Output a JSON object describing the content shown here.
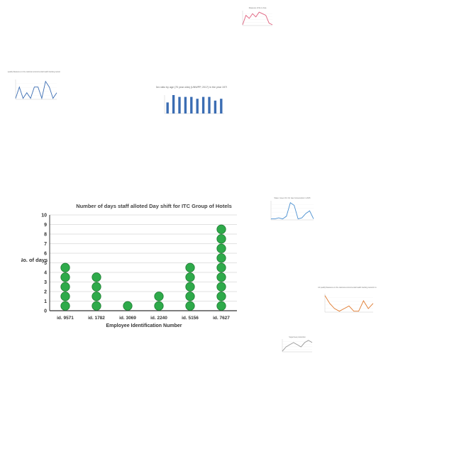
{
  "chart_data": [
    {
      "id": "main",
      "type": "dot-plot",
      "title": "Number of days staff alloted Day shift for ITC Group of Hotels",
      "xlabel": "Employee Identification Number",
      "ylabel": "No. of days",
      "categories": [
        "id. 9571",
        "id. 1782",
        "id. 3069",
        "id. 2240",
        "id. 5156",
        "id. 7627"
      ],
      "values": [
        5,
        4,
        1,
        2,
        5,
        9
      ],
      "ylim": [
        0,
        10
      ],
      "yticks": [
        "0",
        "1",
        "2",
        "3",
        "4",
        "5",
        "6",
        "7",
        "8",
        "9",
        "10"
      ],
      "grid": true,
      "dot_color": "#2eaa4a",
      "dot_stroke": "#1e7a32"
    },
    {
      "id": "thumb-top",
      "type": "line",
      "title": "Measures of life in Asia",
      "series": [
        {
          "values": [
            2,
            8,
            6,
            9,
            7,
            10,
            9,
            8,
            3,
            2
          ]
        }
      ],
      "color": "#e0607e"
    },
    {
      "id": "thumb-left",
      "type": "line",
      "title": "Air quality Measures on the national environmental health tracking network in 2015",
      "series": [
        {
          "values": [
            5,
            6,
            5,
            5.5,
            5,
            6,
            6,
            5,
            6.5,
            6,
            5,
            5.5
          ]
        }
      ],
      "color": "#3b6db3"
    },
    {
      "id": "thumb-center",
      "type": "bar",
      "title": "Sex ratio by age (70 year olds) (UNWPP, 2017) in the year 1970",
      "values": [
        6,
        10,
        9,
        9,
        9,
        8,
        9,
        9,
        7,
        8
      ],
      "color": "#3b6db3"
    },
    {
      "id": "thumb-right-mid",
      "type": "line",
      "title": "Water, Green Oil, Oil, Gas Consumption in 2015",
      "series": [
        {
          "values": [
            5,
            5,
            5.2,
            5,
            5.5,
            8,
            7.5,
            5,
            5.2,
            6,
            6.5,
            5
          ]
        }
      ],
      "color": "#4a8fd0"
    },
    {
      "id": "thumb-right-lower",
      "type": "line",
      "title": "Air quality Measures on the national environmental health tracking network in 2006",
      "series": [
        {
          "values": [
            9,
            6,
            4,
            3,
            4,
            5,
            3,
            3,
            7,
            4,
            6
          ]
        }
      ],
      "color": "#e07a2e"
    },
    {
      "id": "thumb-bottom",
      "type": "line",
      "title": "Sugar beet production",
      "series": [
        {
          "values": [
            3,
            5,
            6,
            7,
            6,
            5,
            7,
            8,
            7
          ]
        }
      ],
      "color": "#999999"
    }
  ]
}
